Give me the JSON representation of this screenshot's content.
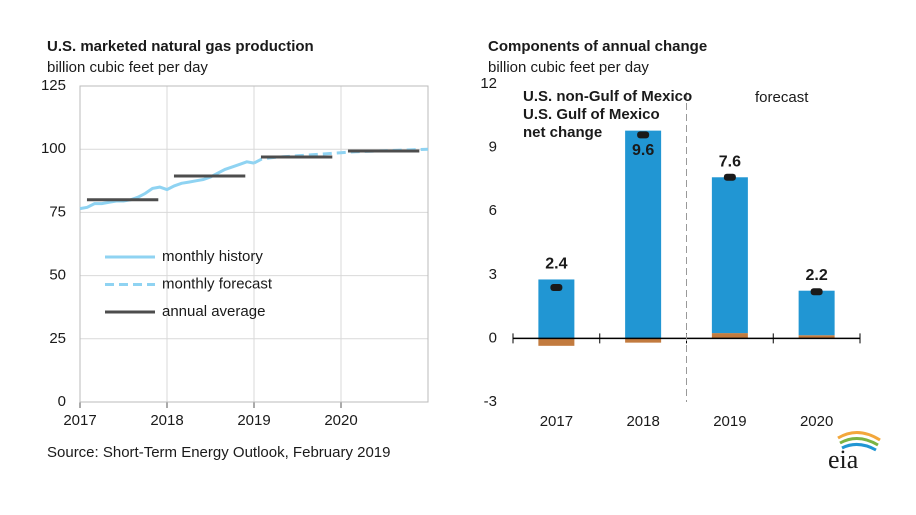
{
  "chart_data": [
    {
      "type": "line",
      "title": "U.S. marketed natural gas production",
      "subtitle": "billion cubic feet per day",
      "xlim": [
        2017,
        2021
      ],
      "xticks": [
        2017,
        2018,
        2019,
        2020
      ],
      "ylim": [
        0,
        125
      ],
      "yticks": [
        0,
        25,
        50,
        75,
        100,
        125
      ],
      "grid": true,
      "legend": "left",
      "series": [
        {
          "name": "monthly history",
          "color": "#8fd3f2",
          "style": "solid",
          "x": [
            2017.0,
            2017.083,
            2017.167,
            2017.25,
            2017.333,
            2017.417,
            2017.5,
            2017.583,
            2017.667,
            2017.75,
            2017.833,
            2017.917,
            2018.0,
            2018.083,
            2018.167,
            2018.25,
            2018.333,
            2018.417,
            2018.5,
            2018.583,
            2018.667,
            2018.75,
            2018.833,
            2018.917,
            2019.0
          ],
          "values": [
            76.5,
            77,
            78.5,
            78.5,
            79,
            79.5,
            79.5,
            80,
            81,
            82.5,
            84.5,
            85,
            84,
            85.5,
            86.5,
            87,
            87.5,
            88,
            89,
            90.5,
            92,
            93,
            94,
            95,
            94.5
          ]
        },
        {
          "name": "monthly forecast",
          "color": "#8fd3f2",
          "style": "dashed",
          "x": [
            2019.0,
            2019.083,
            2019.167,
            2019.25,
            2019.333,
            2019.417,
            2019.5,
            2019.583,
            2019.667,
            2019.75,
            2019.833,
            2019.917,
            2020.0,
            2020.083,
            2020.167,
            2020.25,
            2020.333,
            2020.417,
            2020.5,
            2020.583,
            2020.667,
            2020.75,
            2020.833,
            2020.917,
            2021.0
          ],
          "values": [
            94.5,
            96,
            96.5,
            96.8,
            97,
            97.2,
            97.4,
            97.6,
            97.8,
            98,
            98.2,
            98.4,
            98.6,
            98.8,
            99,
            99.1,
            99.2,
            99.3,
            99.4,
            99.5,
            99.6,
            99.7,
            99.8,
            99.9,
            100
          ]
        },
        {
          "name": "annual average",
          "color": "#4d4d4d",
          "style": "segments",
          "x": [
            2017,
            2018,
            2019,
            2020
          ],
          "values": [
            80,
            89.4,
            96.9,
            99.3
          ]
        }
      ]
    },
    {
      "type": "bar",
      "stacked": true,
      "title": "Components of annual change",
      "subtitle": "billion cubic  feet per day",
      "categories": [
        "2017",
        "2018",
        "2019",
        "2020"
      ],
      "ylim": [
        -3,
        12
      ],
      "yticks": [
        -3,
        0,
        3,
        6,
        9,
        12
      ],
      "annotation": "forecast",
      "series": [
        {
          "name": "U.S. non-Gulf of Mexico",
          "color": "#2196d3",
          "values": [
            2.78,
            9.8,
            7.35,
            2.1
          ]
        },
        {
          "name": "U.S. Gulf of Mexico",
          "color": "#c27b3f",
          "values": [
            -0.35,
            -0.2,
            0.25,
            0.15
          ]
        },
        {
          "name": "net change",
          "color": "#1a1a1a",
          "type": "marker",
          "values": [
            2.4,
            9.6,
            7.6,
            2.2
          ]
        }
      ]
    }
  ],
  "source": "Source: Short-Term Energy Outlook, February 2019",
  "logo": "eia"
}
